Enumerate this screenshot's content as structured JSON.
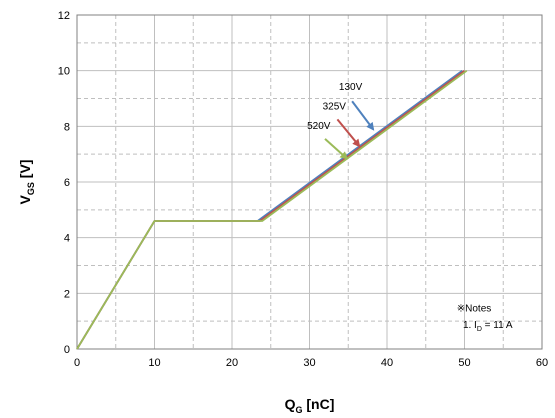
{
  "chart_data": {
    "type": "line",
    "xlabel": {
      "main": "Q",
      "sub": "G",
      "unit": " [nC]"
    },
    "ylabel": {
      "main": "V",
      "sub": "GS",
      "unit": " [V]"
    },
    "xlim": [
      0,
      60
    ],
    "ylim": [
      0,
      12
    ],
    "xticks": [
      0,
      10,
      20,
      30,
      40,
      50,
      60
    ],
    "yticks": [
      0,
      2,
      4,
      6,
      8,
      10,
      12
    ],
    "grid": true,
    "minor_grid": "dashed",
    "series": [
      {
        "name": "130V",
        "color": "#4F81BD",
        "points": [
          [
            0,
            0
          ],
          [
            10,
            4.6
          ],
          [
            23.3,
            4.6
          ],
          [
            49.7,
            10.0
          ]
        ]
      },
      {
        "name": "325V",
        "color": "#C0504D",
        "points": [
          [
            0,
            0
          ],
          [
            10,
            4.6
          ],
          [
            23.6,
            4.6
          ],
          [
            50.0,
            10.0
          ]
        ]
      },
      {
        "name": "520V",
        "color": "#9BBB59",
        "points": [
          [
            0,
            0
          ],
          [
            10,
            4.6
          ],
          [
            23.9,
            4.6
          ],
          [
            50.3,
            10.0
          ]
        ]
      }
    ],
    "annotations": [
      {
        "text": "130V",
        "color": "#4F81BD",
        "label_at": [
          35.3,
          9.3
        ],
        "arrow_from": [
          35.5,
          8.9
        ],
        "arrow_to": [
          38.2,
          7.9
        ]
      },
      {
        "text": "325V",
        "color": "#C0504D",
        "label_at": [
          33.2,
          8.6
        ],
        "arrow_from": [
          33.6,
          8.25
        ],
        "arrow_to": [
          36.4,
          7.3
        ]
      },
      {
        "text": "520V",
        "color": "#9BBB59",
        "label_at": [
          31.2,
          7.9
        ],
        "arrow_from": [
          32.0,
          7.55
        ],
        "arrow_to": [
          34.8,
          6.85
        ]
      }
    ],
    "notes": {
      "title": "※Notes",
      "line1_prefix": "1. I",
      "line1_sub": "D",
      "line1_suffix": " = 11 A"
    }
  }
}
